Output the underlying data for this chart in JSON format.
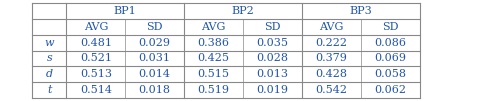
{
  "col_groups": [
    "BP1",
    "BP2",
    "BP3"
  ],
  "col_headers": [
    "AVG",
    "SD",
    "AVG",
    "SD",
    "AVG",
    "SD"
  ],
  "row_headers": [
    "w",
    "s",
    "d",
    "t"
  ],
  "table_data": [
    [
      "0.481",
      "0.029",
      "0.386",
      "0.035",
      "0.222",
      "0.086"
    ],
    [
      "0.521",
      "0.031",
      "0.425",
      "0.028",
      "0.379",
      "0.069"
    ],
    [
      "0.513",
      "0.014",
      "0.515",
      "0.013",
      "0.428",
      "0.058"
    ],
    [
      "0.514",
      "0.018",
      "0.519",
      "0.019",
      "0.542",
      "0.062"
    ]
  ],
  "font_size": 8.0,
  "text_color": "#2255aa",
  "line_color": "#888888",
  "bg_color": "#ffffff"
}
